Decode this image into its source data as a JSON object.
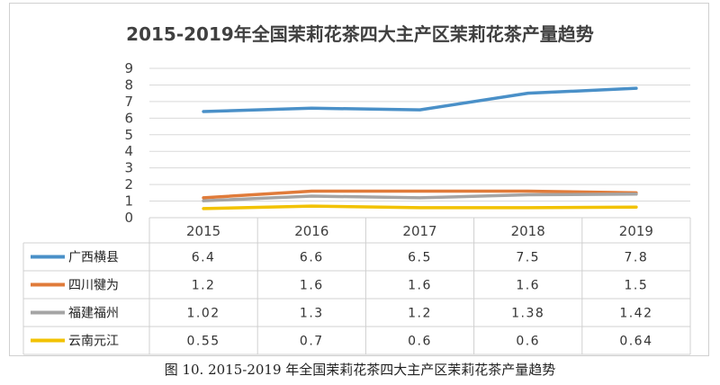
{
  "chart_data": {
    "type": "line",
    "title": "2015-2019年全国茉莉花茶四大主产区茉莉花茶产量趋势",
    "categories": [
      "2015",
      "2016",
      "2017",
      "2018",
      "2019"
    ],
    "ylim": [
      0,
      9
    ],
    "yticks": [
      "0",
      "1",
      "2",
      "3",
      "4",
      "5",
      "6",
      "7",
      "8",
      "9"
    ],
    "grid": true,
    "legend": "data-table",
    "series": [
      {
        "name": "广西横县",
        "color": "#4a90c8",
        "values": [
          6.4,
          6.6,
          6.5,
          7.5,
          7.8
        ],
        "labels": [
          "6.4",
          "6.6",
          "6.5",
          "7.5",
          "7.8"
        ]
      },
      {
        "name": "四川犍为",
        "color": "#e07b3a",
        "values": [
          1.2,
          1.6,
          1.6,
          1.6,
          1.5
        ],
        "labels": [
          "1.2",
          "1.6",
          "1.6",
          "1.6",
          "1.5"
        ]
      },
      {
        "name": "福建福州",
        "color": "#a5a5a5",
        "values": [
          1.02,
          1.3,
          1.2,
          1.38,
          1.42
        ],
        "labels": [
          "1.02",
          "1.3",
          "1.2",
          "1.38",
          "1.42"
        ]
      },
      {
        "name": "云南元江",
        "color": "#f2c200",
        "values": [
          0.55,
          0.7,
          0.6,
          0.6,
          0.64
        ],
        "labels": [
          "0.55",
          "0.7",
          "0.6",
          "0.6",
          "0.64"
        ]
      }
    ]
  },
  "caption": "图 10. 2015-2019 年全国茉莉花茶四大主产区茉莉花茶产量趋势"
}
